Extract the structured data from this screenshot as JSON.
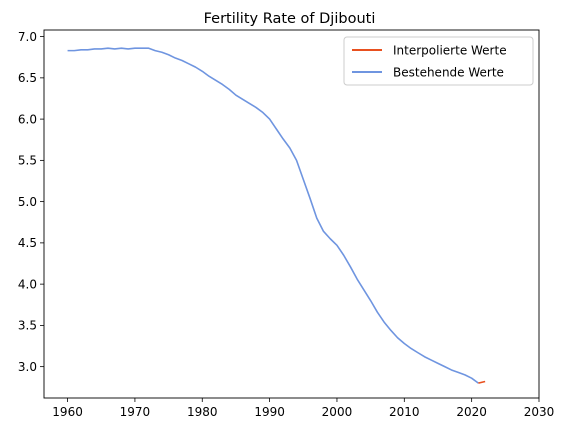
{
  "chart_data": {
    "type": "line",
    "title": "Fertility Rate of Djibouti",
    "xlabel": "",
    "ylabel": "",
    "xlim": [
      1956.5,
      2030
    ],
    "ylim": [
      2.62,
      7.08
    ],
    "xticks": [
      1960,
      1970,
      1980,
      1990,
      2000,
      2010,
      2020,
      2030
    ],
    "xtick_labels": [
      "1960",
      "1970",
      "1980",
      "1990",
      "2000",
      "2010",
      "2020",
      "2030"
    ],
    "yticks": [
      3.0,
      3.5,
      4.0,
      4.5,
      5.0,
      5.5,
      6.0,
      6.5,
      7.0
    ],
    "ytick_labels": [
      "3.0",
      "3.5",
      "4.0",
      "4.5",
      "5.0",
      "5.5",
      "6.0",
      "6.5",
      "7.0"
    ],
    "grid": false,
    "legend_position": "top-right",
    "series": [
      {
        "name": "Interpolierte Werte",
        "color": "#e8501f",
        "x": [
          2021,
          2022
        ],
        "y": [
          2.8,
          2.82
        ]
      },
      {
        "name": "Bestehende Werte",
        "color": "#6f95e0",
        "x": [
          1960,
          1961,
          1962,
          1963,
          1964,
          1965,
          1966,
          1967,
          1968,
          1969,
          1970,
          1971,
          1972,
          1973,
          1974,
          1975,
          1976,
          1977,
          1978,
          1979,
          1980,
          1981,
          1982,
          1983,
          1984,
          1985,
          1986,
          1987,
          1988,
          1989,
          1990,
          1991,
          1992,
          1993,
          1994,
          1995,
          1996,
          1997,
          1998,
          1999,
          2000,
          2001,
          2002,
          2003,
          2004,
          2005,
          2006,
          2007,
          2008,
          2009,
          2010,
          2011,
          2012,
          2013,
          2014,
          2015,
          2016,
          2017,
          2018,
          2019,
          2020,
          2021
        ],
        "y": [
          6.83,
          6.83,
          6.84,
          6.84,
          6.85,
          6.85,
          6.86,
          6.85,
          6.86,
          6.85,
          6.86,
          6.86,
          6.86,
          6.83,
          6.81,
          6.78,
          6.74,
          6.71,
          6.67,
          6.63,
          6.58,
          6.52,
          6.47,
          6.42,
          6.36,
          6.29,
          6.24,
          6.19,
          6.14,
          6.08,
          6.0,
          5.88,
          5.76,
          5.65,
          5.5,
          5.27,
          5.04,
          4.8,
          4.64,
          4.55,
          4.47,
          4.35,
          4.21,
          4.06,
          3.93,
          3.8,
          3.66,
          3.54,
          3.44,
          3.35,
          3.28,
          3.22,
          3.17,
          3.12,
          3.08,
          3.04,
          3.0,
          2.96,
          2.93,
          2.9,
          2.86,
          2.8
        ]
      }
    ]
  }
}
